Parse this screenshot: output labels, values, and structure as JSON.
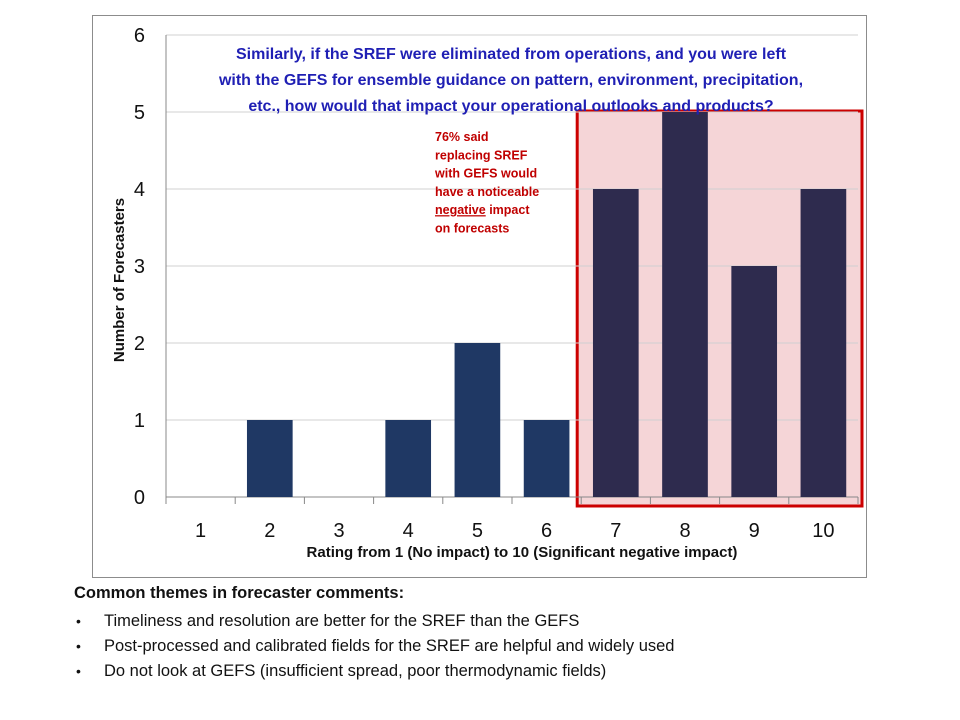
{
  "chart_data": {
    "type": "bar",
    "title": "Similarly, if the SREF were eliminated from operations, and you were left with the GEFS for ensemble guidance on pattern, environment, precipitation, etc., how would that impact your operational outlooks and products?",
    "title_lines": [
      "Similarly, if the SREF were eliminated from operations, and you were left",
      "with the GEFS for ensemble guidance on pattern, environment, precipitation,",
      "etc., how would that impact your operational outlooks and products?"
    ],
    "xlabel": "Rating from 1 (No impact) to 10 (Significant negative impact)",
    "ylabel": "Number of Forecasters",
    "categories": [
      "1",
      "2",
      "3",
      "4",
      "5",
      "6",
      "7",
      "8",
      "9",
      "10"
    ],
    "values": [
      0,
      1,
      0,
      1,
      2,
      1,
      4,
      5,
      3,
      4
    ],
    "ylim": [
      0,
      6
    ],
    "yticks": [
      "0",
      "1",
      "2",
      "3",
      "4",
      "5",
      "6"
    ],
    "grid": true,
    "highlight": {
      "categories": [
        "7",
        "8",
        "9",
        "10"
      ],
      "fill": "#f5d5d7",
      "border": "#cc0000"
    },
    "annotation": {
      "lines": [
        {
          "before": "76% said",
          "underlined": "",
          "after": ""
        },
        {
          "before": "replacing SREF",
          "underlined": "",
          "after": ""
        },
        {
          "before": "with GEFS would",
          "underlined": "",
          "after": ""
        },
        {
          "before": "have a noticeable",
          "underlined": "",
          "after": ""
        },
        {
          "before": "",
          "underlined": "negative",
          "after": " impact"
        },
        {
          "before": "on forecasts",
          "underlined": "",
          "after": ""
        }
      ],
      "color": "#c00000"
    },
    "colors": {
      "bar": "#1f3864",
      "bar_highlight": "#2e2b4e",
      "title": "#1f1fb4",
      "grid": "#d0d0d0",
      "axis": "#888888"
    }
  },
  "comments": {
    "heading": "Common themes in forecaster comments:",
    "items": [
      "Timeliness and resolution are better for the SREF than the GEFS",
      "Post-processed and calibrated fields for the SREF are helpful and widely used",
      "Do not look at GEFS (insufficient spread, poor thermodynamic fields)"
    ],
    "bullet": "•"
  }
}
